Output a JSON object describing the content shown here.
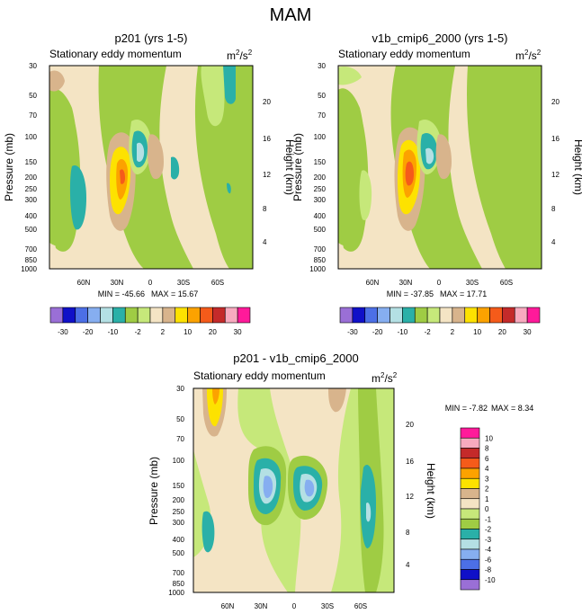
{
  "page_title": "MAM",
  "colorbar_shared": [
    "-30",
    "-20",
    "-10",
    "-2",
    "2",
    "10",
    "20",
    "30"
  ],
  "colorbar_diff": [
    "10",
    "8",
    "6",
    "4",
    "3",
    "2",
    "1",
    "0",
    "-1",
    "-2",
    "-3",
    "-4",
    "-6",
    "-8",
    "-10"
  ],
  "colors": {
    "shared": [
      "#9a6fd6",
      "#1010c8",
      "#4c6fe6",
      "#86aef0",
      "#b4e0e4",
      "#2ab0a8",
      "#9fcc44",
      "#c6e87a",
      "#f4e4c4",
      "#d8b48c",
      "#fde200",
      "#fca200",
      "#f55b1a",
      "#c42a2a",
      "#f8aabf",
      "#ff1a9a"
    ],
    "diff": [
      "#ff1a9a",
      "#f8aabf",
      "#c42a2a",
      "#f55b1a",
      "#fca200",
      "#fde200",
      "#d8b48c",
      "#f4e4c4",
      "#c6e87a",
      "#9fcc44",
      "#2ab0a8",
      "#b4e0e4",
      "#86aef0",
      "#4c6fe6",
      "#1010c8",
      "#9a6fd6"
    ]
  },
  "chart_data": [
    {
      "type": "heatmap",
      "title": "p201 (yrs 1-5)",
      "subtitle_left": "Stationary eddy momentum",
      "units": "m2/s2",
      "ylabel": "Pressure (mb)",
      "ylabel_right": "Height (km)",
      "x_ticks": [
        "60N",
        "30N",
        "0",
        "30S",
        "60S"
      ],
      "y_ticks": [
        "30",
        "50",
        "70",
        "100",
        "150",
        "200",
        "250",
        "300",
        "400",
        "500",
        "700",
        "850",
        "1000"
      ],
      "y_ticks_right": [
        "20",
        "16",
        "12",
        "8",
        "4"
      ],
      "min_label": "MIN = -45.66",
      "max_label": "MAX =  15.67"
    },
    {
      "type": "heatmap",
      "title": "v1b_cmip6_2000 (yrs 1-5)",
      "subtitle_left": "Stationary eddy momentum",
      "units": "m2/s2",
      "ylabel": "Pressure (mb)",
      "ylabel_right": "Height (km)",
      "x_ticks": [
        "60N",
        "30N",
        "0",
        "30S",
        "60S"
      ],
      "y_ticks": [
        "30",
        "50",
        "70",
        "100",
        "150",
        "200",
        "250",
        "300",
        "400",
        "500",
        "700",
        "850",
        "1000"
      ],
      "y_ticks_right": [
        "20",
        "16",
        "12",
        "8",
        "4"
      ],
      "min_label": "MIN = -37.85",
      "max_label": "MAX =  17.71"
    },
    {
      "type": "heatmap",
      "title": "p201 - v1b_cmip6_2000",
      "subtitle_left": "Stationary eddy momentum",
      "units": "m2/s2",
      "ylabel": "Pressure (mb)",
      "ylabel_right": "Height (km)",
      "x_ticks": [
        "60N",
        "30N",
        "0",
        "30S",
        "60S"
      ],
      "y_ticks": [
        "30",
        "50",
        "70",
        "100",
        "150",
        "200",
        "250",
        "300",
        "400",
        "500",
        "700",
        "850",
        "1000"
      ],
      "y_ticks_right": [
        "20",
        "16",
        "12",
        "8",
        "4"
      ],
      "min_label": "MIN =  -7.82",
      "max_label": "MAX =   8.34"
    }
  ]
}
